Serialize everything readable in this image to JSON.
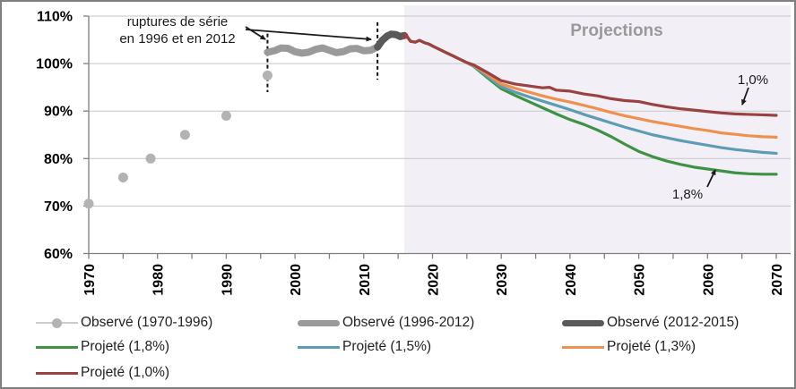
{
  "chart_data": {
    "type": "line",
    "title": "",
    "xlabel": "",
    "ylabel": "",
    "x_range": [
      1970,
      2070
    ],
    "y_range": [
      60,
      110
    ],
    "grid": "horizontal",
    "x_ticks": [
      {
        "value": 1970,
        "label": "1970"
      },
      {
        "value": 1980,
        "label": "1980"
      },
      {
        "value": 1990,
        "label": "1990"
      },
      {
        "value": 2000,
        "label": "2000"
      },
      {
        "value": 2010,
        "label": "2010"
      },
      {
        "value": 2020,
        "label": "2020"
      },
      {
        "value": 2030,
        "label": "2030"
      },
      {
        "value": 2040,
        "label": "2040"
      },
      {
        "value": 2050,
        "label": "2050"
      },
      {
        "value": 2060,
        "label": "2060"
      },
      {
        "value": 2070,
        "label": "2070"
      }
    ],
    "x_minor_tick_step": 5,
    "y_ticks": [
      {
        "value": 60,
        "label": "60%"
      },
      {
        "value": 70,
        "label": "70%"
      },
      {
        "value": 80,
        "label": "80%"
      },
      {
        "value": 90,
        "label": "90%"
      },
      {
        "value": 100,
        "label": "100%"
      },
      {
        "value": 110,
        "label": "110%"
      }
    ],
    "projection_region": {
      "start_year": 2015.9,
      "fill": "#f2f0f6"
    },
    "colors": {
      "gridline": "#c6c6c6",
      "axis": "#808080",
      "tick_label": "#000000"
    },
    "series": [
      {
        "name": "Observé (1970-1996)",
        "slug": "observe-1970-1996",
        "kind": "scatter",
        "color": "#b3b3b3",
        "legend_swatch": "dots",
        "points": [
          [
            1970,
            70.5
          ],
          [
            1975,
            76
          ],
          [
            1979,
            80
          ],
          [
            1984,
            85
          ],
          [
            1990,
            89
          ],
          [
            1996,
            97.5
          ]
        ]
      },
      {
        "name": "Observé (1996-2012)",
        "slug": "observe-1996-2012",
        "kind": "line",
        "color": "#9a9a9a",
        "width": 8,
        "legend_swatch": "thick",
        "points": [
          [
            1996,
            102.4
          ],
          [
            1997,
            102.7
          ],
          [
            1998,
            103.3
          ],
          [
            1999,
            103.2
          ],
          [
            2000,
            102.5
          ],
          [
            2001,
            102.2
          ],
          [
            2002,
            102.4
          ],
          [
            2003,
            103.0
          ],
          [
            2004,
            103.3
          ],
          [
            2005,
            102.8
          ],
          [
            2006,
            102.3
          ],
          [
            2007,
            102.5
          ],
          [
            2008,
            103.1
          ],
          [
            2009,
            103.2
          ],
          [
            2010,
            102.7
          ],
          [
            2011,
            102.8
          ],
          [
            2012,
            103.5
          ]
        ]
      },
      {
        "name": "Observé (2012-2015)",
        "slug": "observe-2012-2015",
        "kind": "line",
        "color": "#595959",
        "width": 8,
        "legend_swatch": "thick",
        "points": [
          [
            2012,
            103.5
          ],
          [
            2012.7,
            104.9
          ],
          [
            2013.4,
            105.8
          ],
          [
            2014,
            106.2
          ],
          [
            2014.7,
            106.1
          ],
          [
            2015.3,
            105.7
          ],
          [
            2015.9,
            105.9
          ]
        ]
      },
      {
        "name": "Projeté (1,8%)",
        "slug": "projete-1-8",
        "kind": "line",
        "color": "#3f9145",
        "width": 3.2,
        "legend_swatch": "line",
        "points": [
          [
            2015.9,
            105.6
          ],
          [
            2016.2,
            105.9
          ],
          [
            2016.8,
            104.7
          ],
          [
            2017.5,
            104.5
          ],
          [
            2018.1,
            104.9
          ],
          [
            2018.8,
            104.4
          ],
          [
            2019.5,
            104.1
          ],
          [
            2020,
            103.7
          ],
          [
            2021,
            103.0
          ],
          [
            2022,
            102.3
          ],
          [
            2023,
            101.6
          ],
          [
            2024,
            100.9
          ],
          [
            2025,
            100.2
          ],
          [
            2026,
            99.4
          ],
          [
            2028,
            97.0
          ],
          [
            2030,
            94.7
          ],
          [
            2032,
            93.3
          ],
          [
            2034,
            92.0
          ],
          [
            2036,
            90.7
          ],
          [
            2038,
            89.4
          ],
          [
            2040,
            88.2
          ],
          [
            2042,
            87.2
          ],
          [
            2044,
            86.0
          ],
          [
            2046,
            84.6
          ],
          [
            2048,
            83.0
          ],
          [
            2050,
            81.5
          ],
          [
            2052,
            80.4
          ],
          [
            2054,
            79.5
          ],
          [
            2056,
            78.8
          ],
          [
            2058,
            78.2
          ],
          [
            2060,
            77.8
          ],
          [
            2062,
            77.4
          ],
          [
            2064,
            77.0
          ],
          [
            2066,
            76.8
          ],
          [
            2068,
            76.7
          ],
          [
            2070,
            76.7
          ]
        ]
      },
      {
        "name": "Projeté (1,5%)",
        "slug": "projete-1-5",
        "kind": "line",
        "color": "#5e9cb4",
        "width": 3.2,
        "legend_swatch": "line",
        "points": [
          [
            2015.9,
            105.6
          ],
          [
            2016.2,
            105.9
          ],
          [
            2016.8,
            104.7
          ],
          [
            2017.5,
            104.5
          ],
          [
            2018.1,
            104.9
          ],
          [
            2018.8,
            104.4
          ],
          [
            2019.5,
            104.1
          ],
          [
            2020,
            103.7
          ],
          [
            2021,
            103.0
          ],
          [
            2022,
            102.3
          ],
          [
            2023,
            101.6
          ],
          [
            2024,
            100.9
          ],
          [
            2025,
            100.2
          ],
          [
            2026,
            99.5
          ],
          [
            2028,
            97.3
          ],
          [
            2030,
            95.1
          ],
          [
            2032,
            94.0
          ],
          [
            2034,
            93.0
          ],
          [
            2036,
            92.1
          ],
          [
            2038,
            91.2
          ],
          [
            2040,
            90.3
          ],
          [
            2042,
            89.3
          ],
          [
            2044,
            88.4
          ],
          [
            2046,
            87.5
          ],
          [
            2048,
            86.6
          ],
          [
            2050,
            85.8
          ],
          [
            2052,
            85.0
          ],
          [
            2054,
            84.4
          ],
          [
            2056,
            83.8
          ],
          [
            2058,
            83.3
          ],
          [
            2060,
            82.8
          ],
          [
            2062,
            82.3
          ],
          [
            2064,
            81.9
          ],
          [
            2066,
            81.6
          ],
          [
            2068,
            81.3
          ],
          [
            2070,
            81.1
          ]
        ]
      },
      {
        "name": "Projeté (1,3%)",
        "slug": "projete-1-3",
        "kind": "line",
        "color": "#ee9150",
        "width": 3.2,
        "legend_swatch": "line",
        "points": [
          [
            2015.9,
            105.6
          ],
          [
            2016.2,
            105.9
          ],
          [
            2016.8,
            104.7
          ],
          [
            2017.5,
            104.5
          ],
          [
            2018.1,
            104.9
          ],
          [
            2018.8,
            104.4
          ],
          [
            2019.5,
            104.1
          ],
          [
            2020,
            103.7
          ],
          [
            2021,
            103.0
          ],
          [
            2022,
            102.3
          ],
          [
            2023,
            101.6
          ],
          [
            2024,
            100.9
          ],
          [
            2025,
            100.2
          ],
          [
            2026,
            99.6
          ],
          [
            2028,
            97.7
          ],
          [
            2030,
            95.7
          ],
          [
            2032,
            94.8
          ],
          [
            2034,
            94.0
          ],
          [
            2036,
            93.2
          ],
          [
            2038,
            92.5
          ],
          [
            2040,
            91.9
          ],
          [
            2042,
            91.2
          ],
          [
            2044,
            90.5
          ],
          [
            2046,
            89.7
          ],
          [
            2048,
            89.0
          ],
          [
            2050,
            88.4
          ],
          [
            2052,
            87.8
          ],
          [
            2054,
            87.3
          ],
          [
            2056,
            86.8
          ],
          [
            2058,
            86.3
          ],
          [
            2060,
            85.9
          ],
          [
            2062,
            85.4
          ],
          [
            2064,
            85.1
          ],
          [
            2066,
            84.8
          ],
          [
            2068,
            84.6
          ],
          [
            2070,
            84.5
          ]
        ]
      },
      {
        "name": "Projeté (1,0%)",
        "slug": "projete-1-0",
        "kind": "line",
        "color": "#9a4142",
        "width": 3.2,
        "legend_swatch": "line",
        "points": [
          [
            2015.9,
            105.6
          ],
          [
            2016.2,
            105.9
          ],
          [
            2016.8,
            104.7
          ],
          [
            2017.5,
            104.5
          ],
          [
            2018.1,
            104.9
          ],
          [
            2018.8,
            104.4
          ],
          [
            2019.5,
            104.1
          ],
          [
            2020,
            103.7
          ],
          [
            2021,
            103.0
          ],
          [
            2022,
            102.3
          ],
          [
            2023,
            101.6
          ],
          [
            2024,
            100.9
          ],
          [
            2025,
            100.2
          ],
          [
            2026,
            99.7
          ],
          [
            2028,
            98.1
          ],
          [
            2030,
            96.4
          ],
          [
            2032,
            95.7
          ],
          [
            2034,
            95.3
          ],
          [
            2036,
            94.9
          ],
          [
            2037,
            95.0
          ],
          [
            2038,
            94.4
          ],
          [
            2040,
            94.2
          ],
          [
            2042,
            93.6
          ],
          [
            2044,
            93.2
          ],
          [
            2046,
            92.6
          ],
          [
            2048,
            92.2
          ],
          [
            2050,
            92.0
          ],
          [
            2052,
            91.4
          ],
          [
            2054,
            90.9
          ],
          [
            2056,
            90.5
          ],
          [
            2058,
            90.2
          ],
          [
            2060,
            89.9
          ],
          [
            2062,
            89.6
          ],
          [
            2064,
            89.4
          ],
          [
            2066,
            89.3
          ],
          [
            2068,
            89.2
          ],
          [
            2070,
            89.1
          ]
        ]
      }
    ],
    "annotations": {
      "rupture_note_line1": "ruptures de série",
      "rupture_note_line2": "en 1996 et en 2012",
      "rupture_lines": [
        {
          "year": 1996,
          "value_from": 94.0,
          "value_to": 106.3
        },
        {
          "year": 2012,
          "value_from": 96.6,
          "value_to": 108.7
        }
      ],
      "projections_label": "Projections",
      "label_red": "1,0%",
      "label_green": "1,8%",
      "projection_start_dot": {
        "year": 2016.1,
        "value": 105.8,
        "color": "#9a4142"
      }
    }
  },
  "legend_items": [
    {
      "series_index": 0,
      "swatch": "dots",
      "color": "#b3b3b3",
      "line_color": "#cccccc"
    },
    {
      "series_index": 1,
      "swatch": "thick",
      "color": "#9a9a9a"
    },
    {
      "series_index": 2,
      "swatch": "thick",
      "color": "#595959"
    },
    {
      "series_index": 3,
      "swatch": "line",
      "color": "#3f9145"
    },
    {
      "series_index": 4,
      "swatch": "line",
      "color": "#5e9cb4"
    },
    {
      "series_index": 5,
      "swatch": "line",
      "color": "#ee9150"
    },
    {
      "series_index": 6,
      "swatch": "line",
      "color": "#9a4142"
    }
  ]
}
